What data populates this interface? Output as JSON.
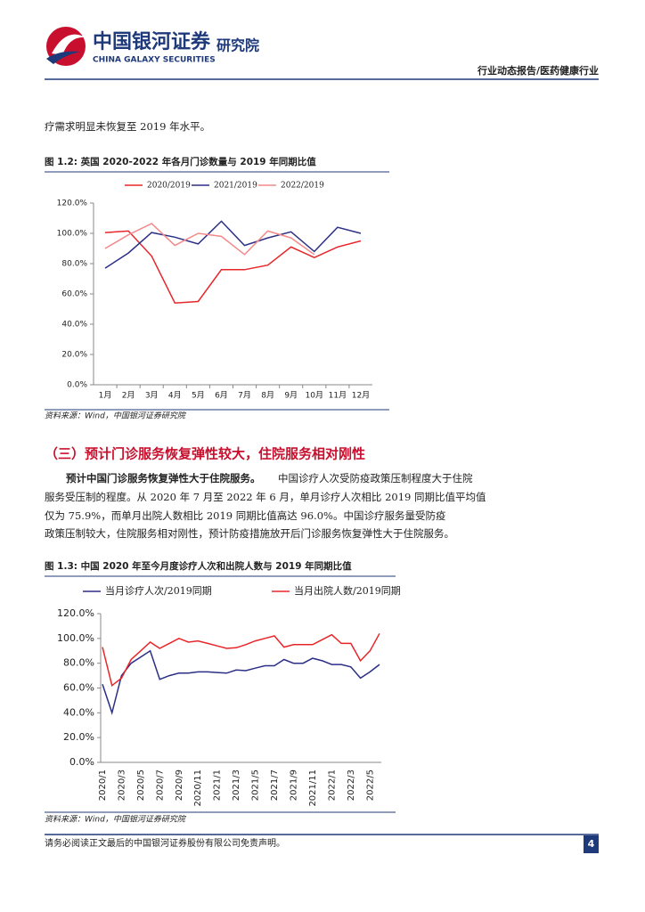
{
  "header": {
    "brand": "中国银河证券",
    "brand_en": "CHINA GALAXY SECURITIES",
    "institute": "研究院",
    "report_type": "行业动态报告/医药健康行业"
  },
  "intro_line": "疗需求明显未恢复至 2019 年水平。",
  "figure_titles": [
    "图 1.2:  英国 2020-2022 年各月门诊数量与 2019 年同期比值",
    "图 1.3:  中国 2020 年至今月度诊疗人次和出院人数与 2019 年同期比值"
  ],
  "sources": [
    "资料来源：Wind，中国银河证券研究院",
    "资料来源：Wind，中国银河证券研究院"
  ],
  "section_heading": "（三）预计门诊服务恢复弹性较大，住院服务相对刚性",
  "paragraph": {
    "bold": "预计中国门诊服务恢复弹性大于住院服务。",
    "lines": [
      "中国诊疗人次受防疫政策压制程度大于住院",
      "服务受压制的程度。从 2020 年 7 月至 2022 年 6 月，单月诊疗人次相比 2019 同期比值平均值",
      "仅为 75.9%，而单月出院人数相比 2019 同期比值高达 96.0%。中国诊疗服务量受防疫",
      "政策压制较大，住院服务相对刚性，预计防疫措施放开后门诊服务恢复弹性大于住院服务。"
    ]
  },
  "footer": {
    "disclaimer": "请务必阅读正文最后的中国银河证券股份有限公司免责声明。",
    "page": "4"
  },
  "chart_data": [
    {
      "type": "line",
      "categories": [
        "1月",
        "2月",
        "3月",
        "4月",
        "5月",
        "6月",
        "7月",
        "8月",
        "9月",
        "10月",
        "11月",
        "12月"
      ],
      "series": [
        {
          "name": "2020/2019",
          "color": "#e8262a",
          "values": [
            100.5,
            101.5,
            85,
            54,
            55,
            76,
            76,
            79,
            91,
            84,
            91,
            95
          ]
        },
        {
          "name": "2021/2019",
          "color": "#2b2f86",
          "values": [
            77,
            87,
            100.5,
            97.5,
            93,
            108,
            92,
            97,
            101,
            88,
            104,
            100
          ]
        },
        {
          "name": "2022/2019",
          "color": "#f4888a",
          "values": [
            90,
            99,
            106.5,
            92,
            100,
            98,
            86,
            101.5,
            97,
            86,
            null,
            null
          ]
        }
      ],
      "ylim": [
        0,
        120
      ],
      "yticks": [
        {
          "value": 0,
          "label": "0.0%"
        },
        {
          "value": 20,
          "label": "20.0%"
        },
        {
          "value": 40,
          "label": "40.0%"
        },
        {
          "value": 60,
          "label": "60.0%"
        },
        {
          "value": 80,
          "label": "80.0%"
        },
        {
          "value": 100,
          "label": "100.0%"
        },
        {
          "value": 120,
          "label": "120.0%"
        }
      ]
    },
    {
      "type": "line",
      "categories": [
        "2020/1",
        null,
        "2020/3",
        null,
        "2020/5",
        null,
        "2020/7",
        null,
        "2020/9",
        null,
        "2020/11",
        null,
        "2021/1",
        null,
        "2021/3",
        null,
        "2021/5",
        null,
        "2021/7",
        null,
        "2021/9",
        null,
        "2021/11",
        null,
        "2022/1",
        null,
        "2022/3",
        null,
        "2022/5",
        null
      ],
      "series": [
        {
          "name": "当月诊疗人次/2019同期",
          "color": "#2b2f86",
          "values": [
            63,
            40,
            70,
            80,
            85,
            90,
            67,
            70,
            72,
            72,
            73,
            73,
            72.5,
            72,
            74.5,
            74,
            76,
            78,
            78,
            83,
            80,
            80,
            84,
            82,
            79,
            79,
            77,
            68,
            73,
            79
          ]
        },
        {
          "name": "当月出院人数/2019同期",
          "color": "#e8262a",
          "values": [
            93,
            62,
            68,
            83,
            90,
            97,
            92,
            96,
            100,
            97,
            98,
            96,
            94,
            92,
            92.5,
            95,
            98,
            100,
            102,
            93,
            95,
            95,
            95,
            99,
            103,
            96,
            96,
            82,
            90,
            104
          ]
        }
      ],
      "ylim": [
        0,
        120
      ],
      "yticks": [
        {
          "value": 0,
          "label": "0.0%"
        },
        {
          "value": 20,
          "label": "20.0%"
        },
        {
          "value": 40,
          "label": "40.0%"
        },
        {
          "value": 60,
          "label": "60.0%"
        },
        {
          "value": 80,
          "label": "80.0%"
        },
        {
          "value": 100,
          "label": "100.0%"
        },
        {
          "value": 120,
          "label": "120.0%"
        }
      ]
    }
  ]
}
